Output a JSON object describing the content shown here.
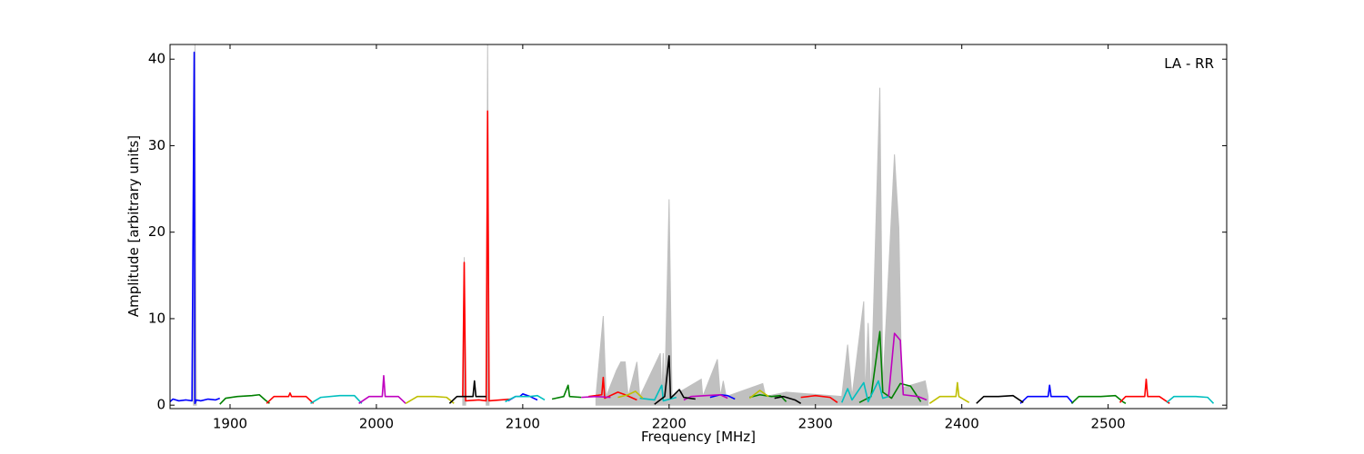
{
  "chart_data": {
    "type": "line",
    "xlabel": "Frequency [MHz]",
    "ylabel": "Amplitude [arbitrary units]",
    "annotation": "LA - RR",
    "xlim": [
      1859,
      2581
    ],
    "ylim": [
      -0.4,
      41.7
    ],
    "xticks": [
      1900,
      2000,
      2100,
      2200,
      2300,
      2400,
      2500
    ],
    "yticks": [
      0,
      10,
      20,
      30,
      40
    ],
    "series": [
      {
        "color": "#c0c0c0",
        "area": true,
        "x": [
          1875,
          1876,
          1877,
          1878,
          2059,
          2060,
          2061,
          2062,
          2075,
          2076,
          2077,
          2078,
          2150,
          2155,
          2157,
          2164,
          2167,
          2170,
          2172,
          2178,
          2180,
          2194,
          2195,
          2196,
          2197,
          2200,
          2202,
          2222,
          2223,
          2233,
          2235,
          2237,
          2239,
          2264,
          2266,
          2280,
          2318,
          2322,
          2325,
          2333,
          2334,
          2336,
          2338,
          2342,
          2344,
          2346,
          2354,
          2355,
          2357,
          2359,
          2375,
          2377
        ],
        "values": [
          1,
          41.7,
          1,
          null,
          1,
          17.1,
          1,
          null,
          1,
          41.7,
          1,
          null,
          1,
          10.3,
          1,
          4,
          5,
          5,
          1,
          5,
          1,
          6,
          1,
          6,
          1,
          23.8,
          1,
          3,
          1,
          5.3,
          1,
          2.8,
          1,
          2.5,
          1,
          1.5,
          1,
          7,
          1,
          12,
          1,
          9.5,
          1,
          25,
          36.7,
          2,
          29,
          26,
          20.5,
          2,
          2.8,
          1
        ]
      },
      {
        "color": "#0000ff",
        "x": [
          1859,
          1861,
          1865,
          1870,
          1874,
          1875.5,
          1876,
          1877,
          1880,
          1885,
          1890,
          1893,
          1894,
          2090,
          2095,
          2098,
          2100,
          2105,
          2110,
          2111,
          2228,
          2235,
          2240,
          2245,
          2246,
          2440,
          2445,
          2455,
          2459,
          2460,
          2461,
          2465,
          2472,
          2476
        ],
        "values": [
          0.4,
          0.7,
          0.5,
          0.6,
          0.5,
          40.8,
          0.2,
          0.6,
          0.5,
          0.7,
          0.6,
          0.8,
          null,
          0.5,
          1.0,
          1.0,
          1.3,
          1.0,
          0.6,
          null,
          0.9,
          1.2,
          1.1,
          0.7,
          null,
          0.2,
          1.0,
          1.0,
          1.0,
          2.3,
          1.0,
          1.0,
          1.0,
          0.2
        ]
      },
      {
        "color": "#008000",
        "x": [
          1893,
          1897,
          1905,
          1915,
          1920,
          1924,
          1927,
          1928,
          2120,
          2128,
          2131,
          2132,
          2140,
          2141,
          2255,
          2262,
          2270,
          2276,
          2280,
          2281,
          2330,
          2338,
          2344,
          2346,
          2352,
          2358,
          2365,
          2372,
          2373,
          2475,
          2480,
          2495,
          2505,
          2510,
          2512
        ],
        "values": [
          0.1,
          0.8,
          1.0,
          1.1,
          1.2,
          0.6,
          0.2,
          null,
          0.7,
          1.0,
          2.3,
          1.0,
          0.9,
          null,
          0.9,
          1.2,
          1.0,
          1.1,
          0.4,
          null,
          0.3,
          1.0,
          8.5,
          1.5,
          0.8,
          2.5,
          2.2,
          0.4,
          null,
          0.2,
          1.0,
          1.0,
          1.1,
          0.4,
          0.2
        ]
      },
      {
        "color": "#ff0000",
        "x": [
          1925,
          1930,
          1940,
          1941,
          1942,
          1952,
          1957,
          1958,
          2059,
          2060,
          2061,
          2070,
          2075,
          2076,
          2077,
          2085,
          2092,
          2093,
          2145,
          2154,
          2155,
          2156,
          2165,
          2170,
          2178,
          2179,
          2290,
          2300,
          2310,
          2315,
          2316,
          2508,
          2512,
          2525,
          2526,
          2527,
          2535,
          2542
        ],
        "values": [
          0.2,
          1.0,
          1.0,
          1.4,
          1.0,
          1.0,
          0.2,
          null,
          1.0,
          16.5,
          0.5,
          0.6,
          0.5,
          34.0,
          0.5,
          0.6,
          0.7,
          null,
          1.0,
          1.2,
          3.2,
          0.8,
          1.5,
          1.2,
          0.6,
          null,
          0.9,
          1.1,
          0.9,
          0.3,
          null,
          0.3,
          1.0,
          1.0,
          3.0,
          1.0,
          1.0,
          0.2
        ]
      },
      {
        "color": "#00bfbf",
        "x": [
          1955,
          1962,
          1975,
          1985,
          1990,
          1991,
          2088,
          2095,
          2105,
          2110,
          2115,
          2116,
          2180,
          2190,
          2195,
          2196,
          2205,
          2206,
          2318,
          2322,
          2325,
          2333,
          2336,
          2343,
          2346,
          2350,
          2351,
          2540,
          2545,
          2560,
          2568,
          2572
        ],
        "values": [
          0.2,
          0.9,
          1.1,
          1.1,
          0.2,
          null,
          0.4,
          1.0,
          1.0,
          1.1,
          0.6,
          null,
          0.8,
          0.6,
          2.3,
          0.5,
          0.9,
          null,
          0.3,
          1.9,
          0.6,
          2.6,
          0.4,
          2.8,
          0.8,
          1.0,
          null,
          0.3,
          1.0,
          1.0,
          0.9,
          0.2
        ]
      },
      {
        "color": "#bf00bf",
        "x": [
          1988,
          1995,
          2004,
          2005,
          2006,
          2015,
          2020,
          2021,
          2140,
          2150,
          2160,
          2161,
          2210,
          2215,
          2225,
          2235,
          2240,
          2241,
          2350,
          2354,
          2358,
          2360,
          2370,
          2376
        ],
        "values": [
          0.2,
          1.0,
          1.0,
          3.4,
          1.0,
          1.0,
          0.2,
          null,
          0.9,
          1.0,
          0.9,
          null,
          0.6,
          1.0,
          1.1,
          1.2,
          0.8,
          null,
          1.0,
          8.3,
          7.5,
          1.2,
          1.0,
          0.6
        ]
      },
      {
        "color": "#bfbf00",
        "x": [
          2020,
          2028,
          2040,
          2048,
          2053,
          2054,
          2165,
          2172,
          2177,
          2182,
          2183,
          2255,
          2262,
          2268,
          2269,
          2378,
          2385,
          2396,
          2397,
          2398,
          2405
        ],
        "values": [
          0.2,
          1.0,
          1.0,
          0.9,
          0.2,
          null,
          0.9,
          1.2,
          1.6,
          0.8,
          null,
          0.8,
          1.7,
          1.0,
          null,
          0.2,
          1.0,
          1.0,
          2.6,
          1.0,
          0.3
        ]
      },
      {
        "color": "#000000",
        "x": [
          2050,
          2055,
          2066,
          2067,
          2068,
          2075,
          2076,
          2190,
          2197,
          2200,
          2201,
          2207,
          2210,
          2218,
          2219,
          2272,
          2278,
          2286,
          2290,
          2291,
          2410,
          2415,
          2425,
          2435,
          2442
        ],
        "values": [
          0.2,
          1.0,
          1.0,
          2.8,
          1.0,
          1.0,
          null,
          0.1,
          1.0,
          5.7,
          0.8,
          1.8,
          0.9,
          0.7,
          null,
          0.8,
          1.0,
          0.6,
          0.2,
          null,
          0.2,
          1.0,
          1.0,
          1.1,
          0.3
        ]
      }
    ]
  }
}
